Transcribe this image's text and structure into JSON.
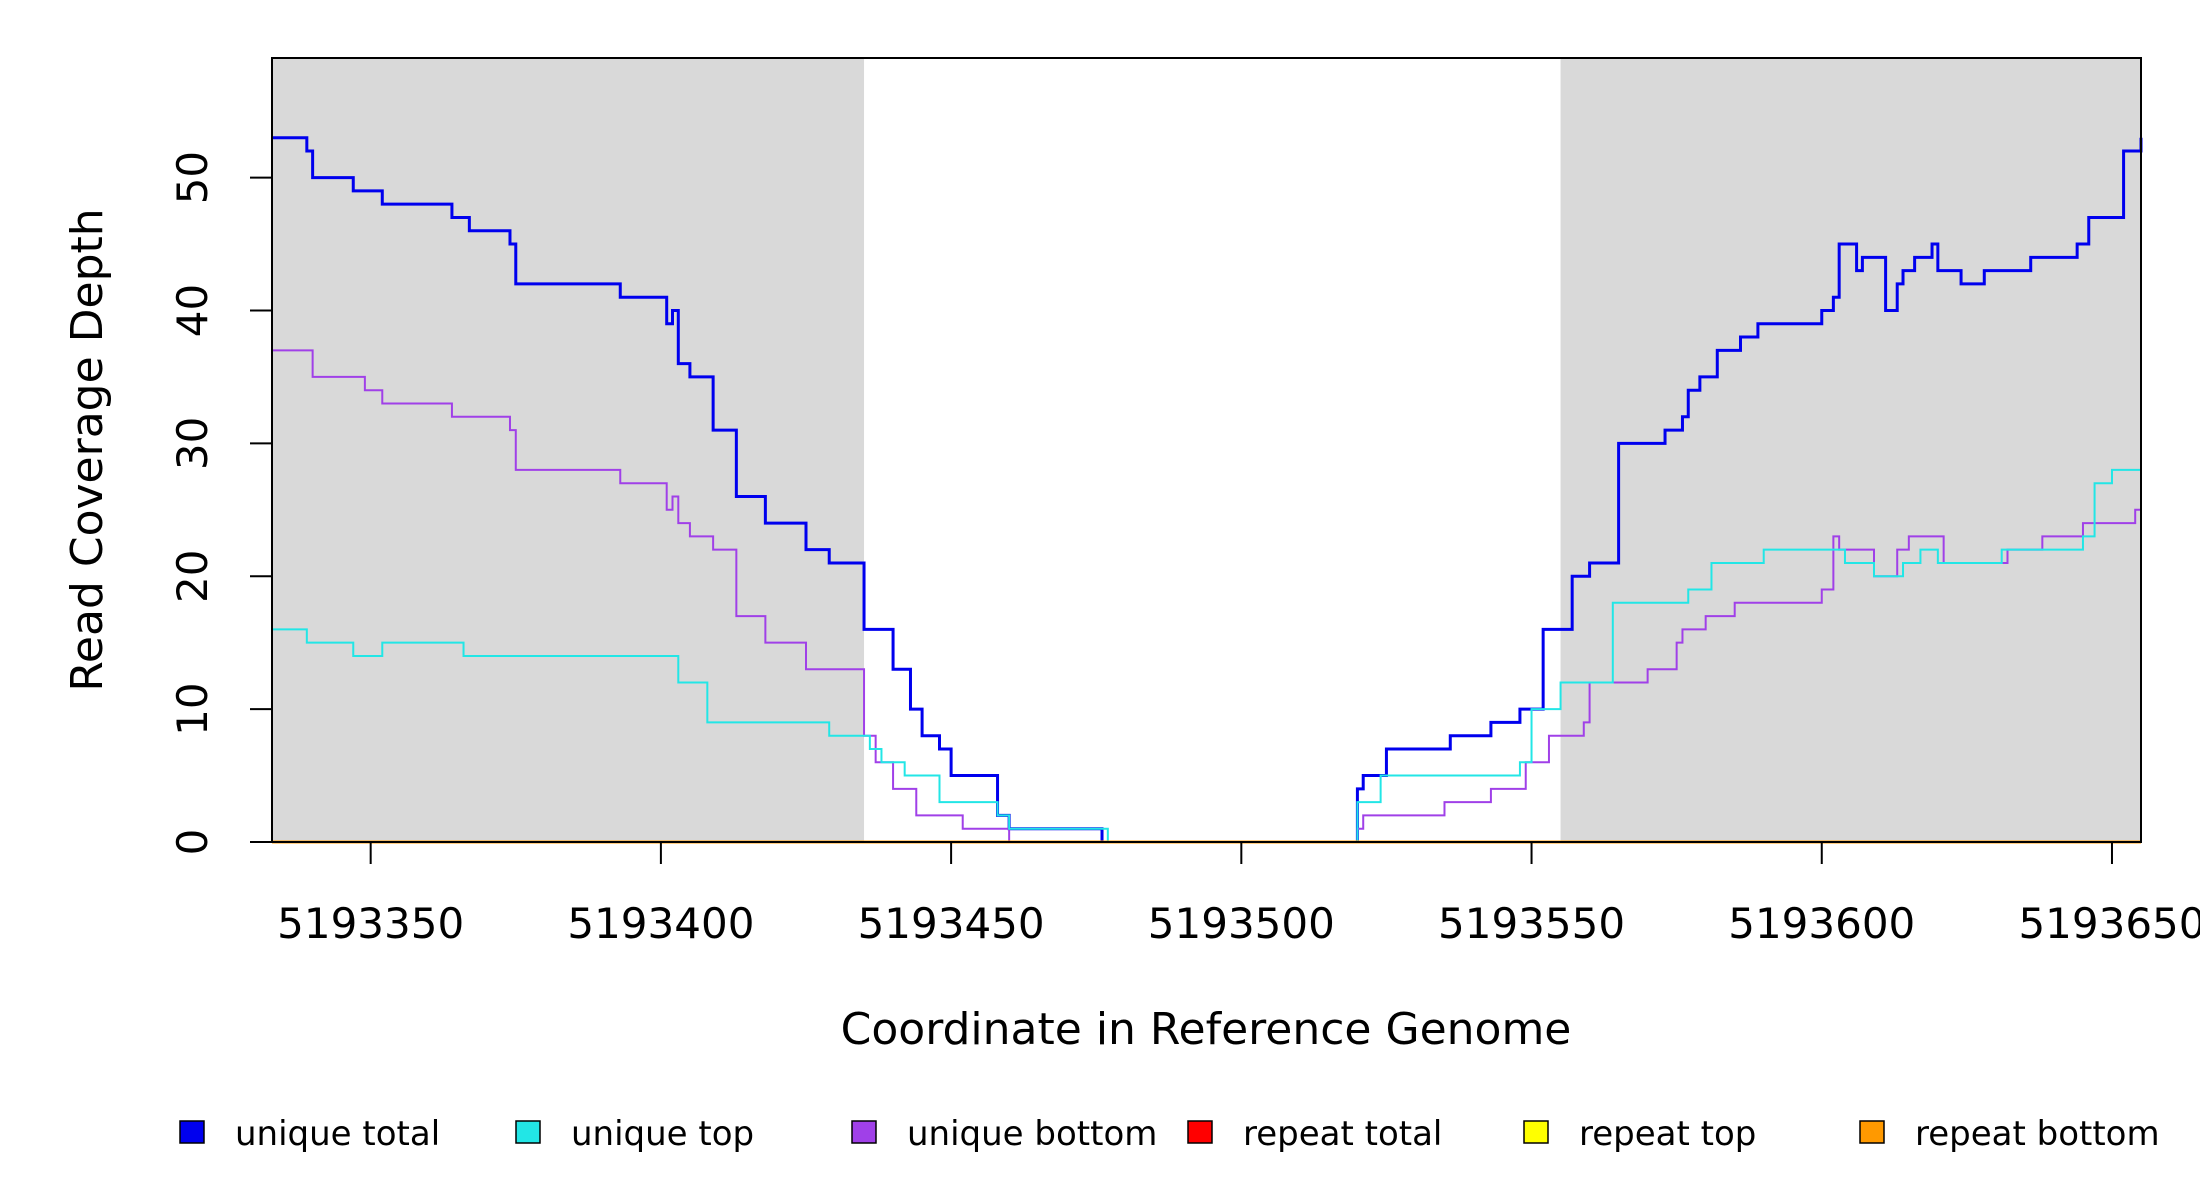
{
  "chart_data": {
    "type": "line",
    "title": "",
    "xlabel": "Coordinate in Reference Genome",
    "ylabel": "Read Coverage Depth",
    "xlim": [
      5193333,
      5193655
    ],
    "ylim": [
      0,
      59
    ],
    "x_ticks": [
      5193350,
      5193400,
      5193450,
      5193500,
      5193550,
      5193600,
      5193650
    ],
    "x_tick_labels": [
      "5193350",
      "5193400",
      "5193450",
      "5193500",
      "5193550",
      "5193600",
      "5193650"
    ],
    "y_ticks": [
      0,
      10,
      20,
      30,
      40,
      50
    ],
    "y_tick_labels": [
      "0",
      "10",
      "20",
      "30",
      "40",
      "50"
    ],
    "grid": false,
    "legend_position": "bottom",
    "shaded_regions": [
      {
        "x_start": 5193333,
        "x_end": 5193435,
        "color": "#d9d9d9"
      },
      {
        "x_start": 5193555,
        "x_end": 5193655,
        "color": "#d9d9d9"
      }
    ],
    "series": [
      {
        "name": "unique total",
        "color": "#0000ee",
        "width": 3,
        "x": [
          5193333,
          5193339,
          5193340,
          5193347,
          5193352,
          5193360,
          5193364,
          5193367,
          5193374,
          5193375,
          5193385,
          5193393,
          5193401,
          5193402,
          5193403,
          5193405,
          5193409,
          5193413,
          5193418,
          5193425,
          5193429,
          5193435,
          5193440,
          5193443,
          5193445,
          5193448,
          5193450,
          5193458,
          5193460,
          5193476,
          5193520,
          5193521,
          5193522,
          5193525,
          5193530,
          5193536,
          5193543,
          5193548,
          5193552,
          5193557,
          5193560,
          5193565,
          5193573,
          5193575,
          5193576,
          5193577,
          5193579,
          5193582,
          5193586,
          5193589,
          5193600,
          5193602,
          5193603,
          5193606,
          5193607,
          5193611,
          5193613,
          5193614,
          5193616,
          5193619,
          5193620,
          5193624,
          5193628,
          5193630,
          5193636,
          5193644,
          5193646,
          5193652,
          5193655
        ],
        "y": [
          53,
          52,
          50,
          49,
          48,
          48,
          47,
          46,
          45,
          42,
          42,
          41,
          39,
          40,
          36,
          35,
          31,
          26,
          24,
          22,
          21,
          16,
          13,
          10,
          8,
          7,
          5,
          2,
          1,
          0,
          4,
          5,
          5,
          7,
          7,
          8,
          9,
          10,
          16,
          20,
          21,
          30,
          31,
          31,
          32,
          34,
          35,
          37,
          38,
          39,
          40,
          41,
          45,
          43,
          44,
          40,
          42,
          43,
          44,
          45,
          43,
          42,
          43,
          43,
          44,
          45,
          47,
          52,
          53
        ]
      },
      {
        "name": "unique top",
        "color": "#22e6e6",
        "width": 2,
        "x": [
          5193333,
          5193339,
          5193347,
          5193352,
          5193366,
          5193375,
          5193386,
          5193393,
          5193403,
          5193408,
          5193416,
          5193429,
          5193436,
          5193438,
          5193442,
          5193448,
          5193458,
          5193460,
          5193477,
          5193520,
          5193524,
          5193530,
          5193536,
          5193548,
          5193550,
          5193555,
          5193558,
          5193564,
          5193570,
          5193577,
          5193581,
          5193586,
          5193590,
          5193602,
          5193604,
          5193609,
          5193614,
          5193617,
          5193620,
          5193626,
          5193631,
          5193637,
          5193641,
          5193645,
          5193647,
          5193650,
          5193655
        ],
        "y": [
          16,
          15,
          14,
          15,
          14,
          14,
          14,
          14,
          12,
          9,
          9,
          8,
          7,
          6,
          5,
          3,
          2,
          1,
          0,
          3,
          5,
          5,
          5,
          6,
          10,
          12,
          12,
          18,
          18,
          19,
          21,
          21,
          22,
          22,
          21,
          20,
          21,
          22,
          21,
          21,
          22,
          22,
          22,
          23,
          27,
          28,
          28
        ]
      },
      {
        "name": "unique bottom",
        "color": "#a040e8",
        "width": 2,
        "x": [
          5193333,
          5193340,
          5193349,
          5193352,
          5193364,
          5193374,
          5193375,
          5193393,
          5193401,
          5193402,
          5193403,
          5193405,
          5193409,
          5193413,
          5193418,
          5193425,
          5193435,
          5193437,
          5193440,
          5193444,
          5193450,
          5193452,
          5193460,
          5193476,
          5193520,
          5193521,
          5193535,
          5193543,
          5193549,
          5193553,
          5193559,
          5193560,
          5193565,
          5193570,
          5193575,
          5193576,
          5193580,
          5193585,
          5193600,
          5193602,
          5193603,
          5193604,
          5193609,
          5193613,
          5193615,
          5193619,
          5193621,
          5193630,
          5193632,
          5193638,
          5193645,
          5193654,
          5193655
        ],
        "y": [
          37,
          35,
          34,
          33,
          32,
          31,
          28,
          27,
          25,
          26,
          24,
          23,
          22,
          17,
          15,
          13,
          8,
          6,
          4,
          2,
          2,
          1,
          0,
          0,
          1,
          2,
          3,
          4,
          6,
          8,
          9,
          12,
          12,
          13,
          15,
          16,
          17,
          18,
          19,
          23,
          22,
          22,
          20,
          22,
          23,
          23,
          21,
          21,
          22,
          23,
          24,
          25,
          26
        ]
      },
      {
        "name": "repeat total",
        "color": "#ff0000",
        "width": 2,
        "x": [
          5193333,
          5193655
        ],
        "y": [
          0,
          0
        ]
      },
      {
        "name": "repeat top",
        "color": "#ffff00",
        "width": 2,
        "x": [
          5193333,
          5193655
        ],
        "y": [
          0,
          0
        ]
      },
      {
        "name": "repeat bottom",
        "color": "#ff9900",
        "width": 3,
        "x": [
          5193333,
          5193655
        ],
        "y": [
          0,
          0
        ]
      }
    ]
  }
}
